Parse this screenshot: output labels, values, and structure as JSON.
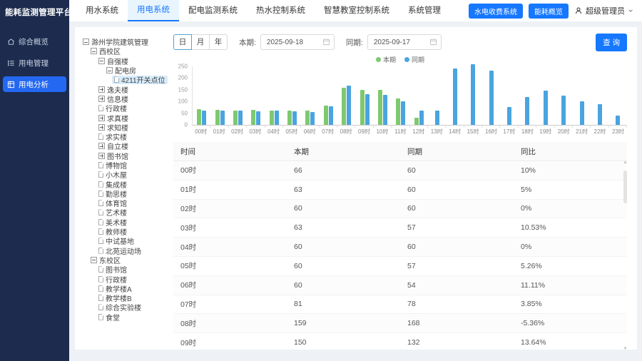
{
  "app": {
    "title": "能耗监测管理平台"
  },
  "sidebar": {
    "items": [
      {
        "label": "综合概览",
        "icon": "home-icon",
        "active": false
      },
      {
        "label": "用电管理",
        "icon": "list-icon",
        "active": false
      },
      {
        "label": "用电分析",
        "icon": "grid-icon",
        "active": true
      }
    ]
  },
  "header": {
    "tabs": [
      {
        "label": "用水系统",
        "active": false
      },
      {
        "label": "用电系统",
        "active": true
      },
      {
        "label": "配电监测系统",
        "active": false
      },
      {
        "label": "热水控制系统",
        "active": false
      },
      {
        "label": "智慧教室控制系统",
        "active": false
      },
      {
        "label": "系统管理",
        "active": false
      }
    ],
    "actions": [
      {
        "label": "水电收费系统"
      },
      {
        "label": "能耗概览"
      }
    ],
    "user": {
      "name": "超级管理员"
    }
  },
  "tree": {
    "items": [
      {
        "label": "滁州学院建筑管理",
        "level": 0,
        "icon": "minus",
        "selected": false
      },
      {
        "label": "西校区",
        "level": 1,
        "icon": "minus",
        "selected": false
      },
      {
        "label": "自强楼",
        "level": 2,
        "icon": "minus",
        "selected": false
      },
      {
        "label": "配电房",
        "level": 3,
        "icon": "minus",
        "selected": false
      },
      {
        "label": "4211开关点位",
        "level": 4,
        "icon": "file",
        "selected": true
      },
      {
        "label": "逸夫楼",
        "level": 2,
        "icon": "plus",
        "selected": false
      },
      {
        "label": "信息楼",
        "level": 2,
        "icon": "plus",
        "selected": false
      },
      {
        "label": "行政楼",
        "level": 2,
        "icon": "file",
        "selected": false
      },
      {
        "label": "求真楼",
        "level": 2,
        "icon": "plus",
        "selected": false
      },
      {
        "label": "求知楼",
        "level": 2,
        "icon": "plus",
        "selected": false
      },
      {
        "label": "求实楼",
        "level": 2,
        "icon": "file",
        "selected": false
      },
      {
        "label": "自立楼",
        "level": 2,
        "icon": "plus",
        "selected": false
      },
      {
        "label": "图书馆",
        "level": 2,
        "icon": "plus",
        "selected": false
      },
      {
        "label": "博物馆",
        "level": 2,
        "icon": "file",
        "selected": false
      },
      {
        "label": "小木屋",
        "level": 2,
        "icon": "file",
        "selected": false
      },
      {
        "label": "集成楼",
        "level": 2,
        "icon": "file",
        "selected": false
      },
      {
        "label": "勤思楼",
        "level": 2,
        "icon": "file",
        "selected": false
      },
      {
        "label": "体育馆",
        "level": 2,
        "icon": "file",
        "selected": false
      },
      {
        "label": "艺术楼",
        "level": 2,
        "icon": "file",
        "selected": false
      },
      {
        "label": "美术楼",
        "level": 2,
        "icon": "file",
        "selected": false
      },
      {
        "label": "教师楼",
        "level": 2,
        "icon": "file",
        "selected": false
      },
      {
        "label": "中试基地",
        "level": 2,
        "icon": "file",
        "selected": false
      },
      {
        "label": "北苑运动场",
        "level": 2,
        "icon": "file",
        "selected": false
      },
      {
        "label": "东校区",
        "level": 1,
        "icon": "minus",
        "selected": false
      },
      {
        "label": "图书馆",
        "level": 2,
        "icon": "file",
        "selected": false
      },
      {
        "label": "行政楼",
        "level": 2,
        "icon": "file",
        "selected": false
      },
      {
        "label": "教学楼A",
        "level": 2,
        "icon": "file",
        "selected": false
      },
      {
        "label": "教学楼B",
        "level": 2,
        "icon": "file",
        "selected": false
      },
      {
        "label": "综合实验楼",
        "level": 2,
        "icon": "file",
        "selected": false
      },
      {
        "label": "食堂",
        "level": 2,
        "icon": "file",
        "selected": false
      }
    ]
  },
  "filters": {
    "period_buttons": [
      {
        "label": "日",
        "active": true
      },
      {
        "label": "月",
        "active": false
      },
      {
        "label": "年",
        "active": false
      }
    ],
    "current_label": "本期:",
    "current_value": "2025-09-18",
    "compare_label": "同期:",
    "compare_value": "2025-09-17",
    "search_label": "查 询"
  },
  "chart_data": {
    "type": "bar",
    "title": "",
    "xlabel": "",
    "ylabel": "",
    "categories": [
      "00时",
      "01时",
      "02时",
      "03时",
      "04时",
      "05时",
      "06时",
      "07时",
      "08时",
      "09时",
      "10时",
      "11时",
      "12时",
      "13时",
      "14时",
      "15时",
      "16时",
      "17时",
      "18时",
      "19时",
      "20时",
      "21时",
      "22时",
      "23时"
    ],
    "series": [
      {
        "name": "本期",
        "color": "#7ec96e",
        "values": [
          66,
          63,
          60,
          63,
          60,
          60,
          60,
          81,
          159,
          150,
          148,
          114,
          30,
          0,
          0,
          0,
          0,
          0,
          0,
          0,
          0,
          0,
          0,
          0
        ]
      },
      {
        "name": "同期",
        "color": "#4aa4e0",
        "values": [
          60,
          60,
          60,
          57,
          60,
          57,
          54,
          78,
          168,
          132,
          128,
          100,
          60,
          60,
          240,
          260,
          232,
          75,
          120,
          145,
          125,
          101,
          88,
          40
        ]
      }
    ],
    "ylim": [
      0,
      250
    ],
    "yticks": [
      0,
      50,
      100,
      150,
      200,
      250
    ],
    "grid": false,
    "legend_position": "top"
  },
  "table": {
    "headers": [
      "时间",
      "本期",
      "同期",
      "同比"
    ],
    "rows": [
      [
        "00时",
        "66",
        "60",
        "10%"
      ],
      [
        "01时",
        "63",
        "60",
        "5%"
      ],
      [
        "02时",
        "60",
        "60",
        "0%"
      ],
      [
        "03时",
        "63",
        "57",
        "10.53%"
      ],
      [
        "04时",
        "60",
        "60",
        "0%"
      ],
      [
        "05时",
        "60",
        "57",
        "5.26%"
      ],
      [
        "06时",
        "60",
        "54",
        "11.11%"
      ],
      [
        "07时",
        "81",
        "78",
        "3.85%"
      ],
      [
        "08时",
        "159",
        "168",
        "-5.36%"
      ],
      [
        "09时",
        "150",
        "132",
        "13.64%"
      ]
    ]
  }
}
